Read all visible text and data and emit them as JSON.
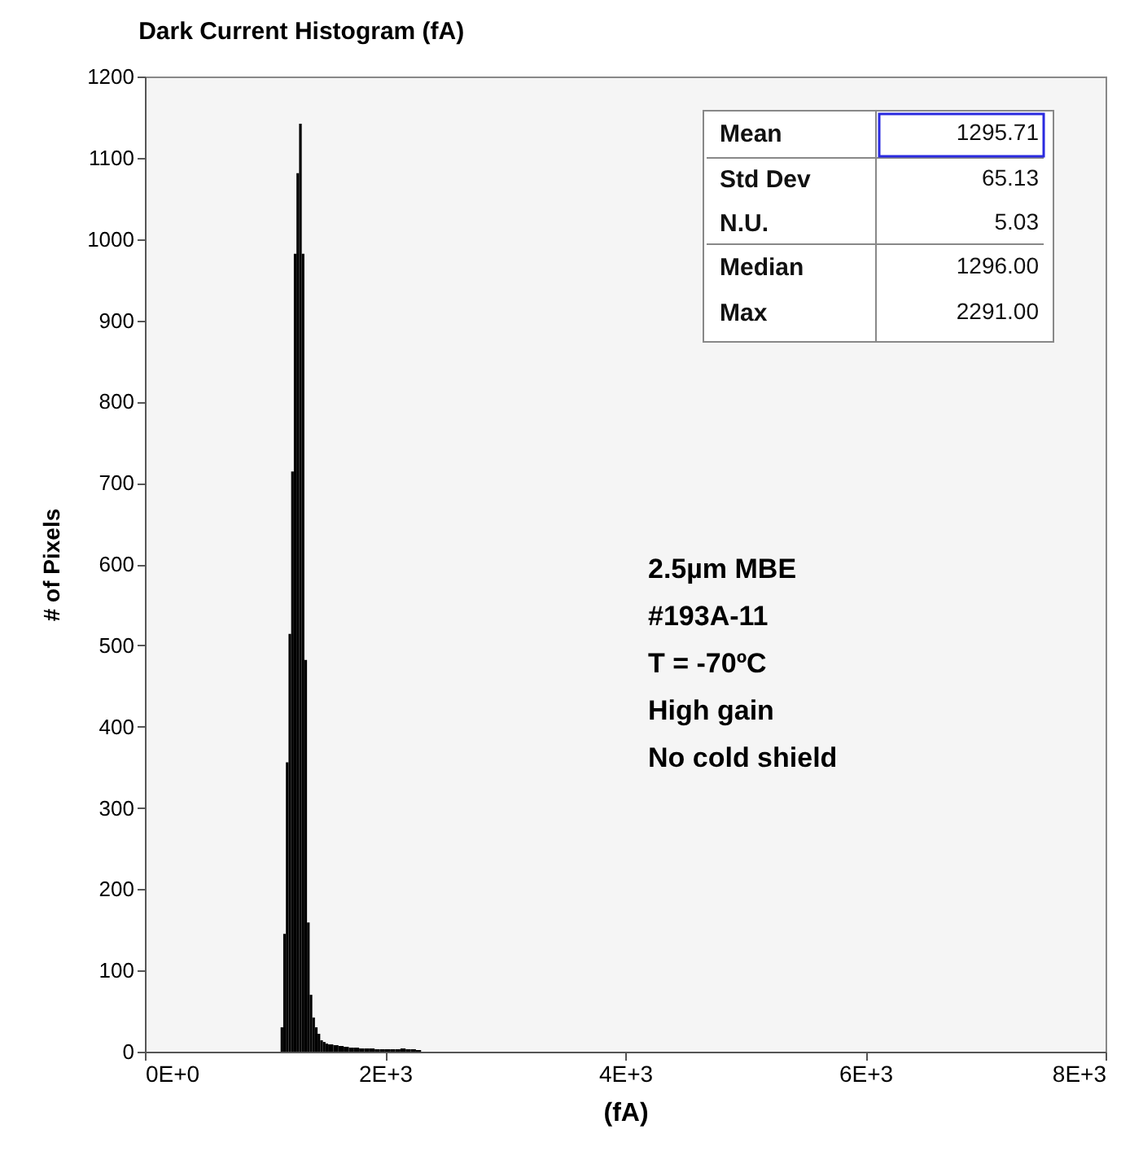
{
  "chart_data": {
    "type": "histogram",
    "title": "Dark Current Histogram    (fA)",
    "xlabel": "(fA)",
    "ylabel": "# of Pixels",
    "bins": [
      1130,
      1152,
      1174,
      1196,
      1218,
      1240,
      1262,
      1284,
      1306,
      1328,
      1350,
      1372,
      1394,
      1416,
      1438,
      1460,
      1482,
      1504,
      1526,
      1569,
      1612,
      1655,
      1698,
      1741,
      1784,
      1827,
      1870,
      1913,
      1956,
      1999,
      2042,
      2085,
      2128,
      2171,
      2214,
      2257,
      2300
    ],
    "values": [
      30,
      145,
      356,
      514,
      714,
      982,
      1081,
      1142,
      982,
      482,
      159,
      70,
      42,
      30,
      22,
      14,
      12,
      10,
      9,
      8,
      7,
      6,
      5,
      5,
      4,
      4,
      4,
      3,
      3,
      3,
      3,
      3,
      4,
      3,
      3,
      2
    ],
    "color": "#000000",
    "xlim": [
      0,
      8000
    ],
    "xticks": [
      {
        "value": 0,
        "label": "0E+0"
      },
      {
        "value": 2000,
        "label": "2E+3"
      },
      {
        "value": 4000,
        "label": "4E+3"
      },
      {
        "value": 6000,
        "label": "6E+3"
      },
      {
        "value": 8000,
        "label": "8E+3"
      }
    ],
    "ylim": [
      0,
      1200
    ],
    "yticks": [
      0,
      100,
      200,
      300,
      400,
      500,
      600,
      700,
      800,
      900,
      1000,
      1100,
      1200
    ],
    "grid": false,
    "annotations": [
      "Mean",
      "1295.71",
      "Std Dev",
      "65.13",
      "N.U.",
      "5.03",
      "Median",
      "1296.00",
      "Max",
      "2291.00",
      "2.5µm MBE",
      "#193A-11",
      "T = -70ºC",
      "High gain",
      "No cold shield"
    ]
  }
}
